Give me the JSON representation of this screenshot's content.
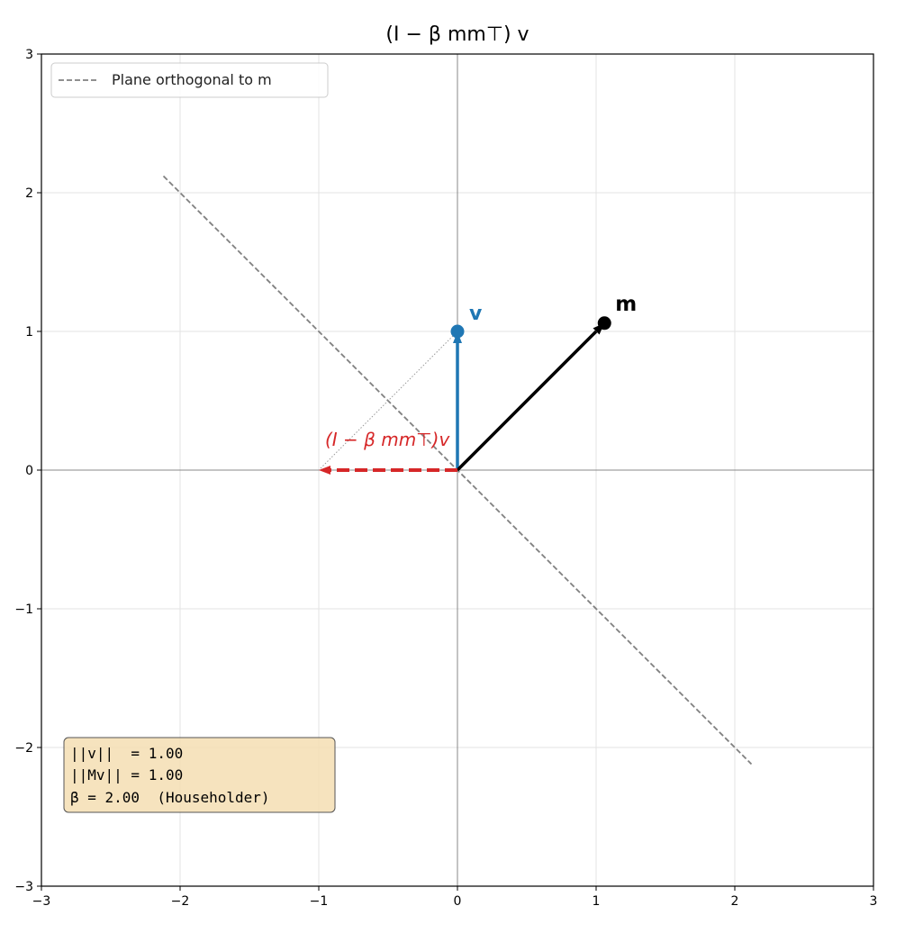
{
  "chart_data": {
    "type": "line",
    "title": "(I − β mm⊤) v",
    "xlabel": "",
    "ylabel": "",
    "xlim": [
      -3,
      3
    ],
    "ylim": [
      -3,
      3
    ],
    "grid": true,
    "xticks": [
      -3,
      -2,
      -1,
      0,
      1,
      2,
      3
    ],
    "yticks": [
      -3,
      -2,
      -1,
      0,
      1,
      2,
      3
    ],
    "tick_labels": [
      "−3",
      "−2",
      "−1",
      "0",
      "1",
      "2",
      "3"
    ],
    "legend": {
      "placement": "top-left",
      "entries": [
        "Plane orthogonal to m"
      ]
    },
    "plane_line": {
      "from": [
        -2.12,
        2.12
      ],
      "to": [
        2.12,
        -2.12
      ],
      "color": "#808080"
    },
    "vectors": [
      {
        "name": "v",
        "label": "v",
        "to": [
          0,
          1
        ],
        "color": "#1f77b4",
        "style": "solid"
      },
      {
        "name": "m",
        "label": "m",
        "to": [
          1.06,
          1.06
        ],
        "color": "#000000",
        "style": "solid"
      },
      {
        "name": "Mv",
        "label": "(I − β mm⊤)v",
        "to": [
          -1,
          0
        ],
        "color": "#d62728",
        "style": "dashed"
      }
    ],
    "dotted_connector": {
      "from": [
        0,
        1
      ],
      "to": [
        -1,
        0
      ]
    },
    "info_box": {
      "lines": [
        "||v||  = 1.00",
        "||Mv|| = 1.00",
        "β = 2.00  (Householder)"
      ],
      "background": "#f5deb3"
    }
  }
}
